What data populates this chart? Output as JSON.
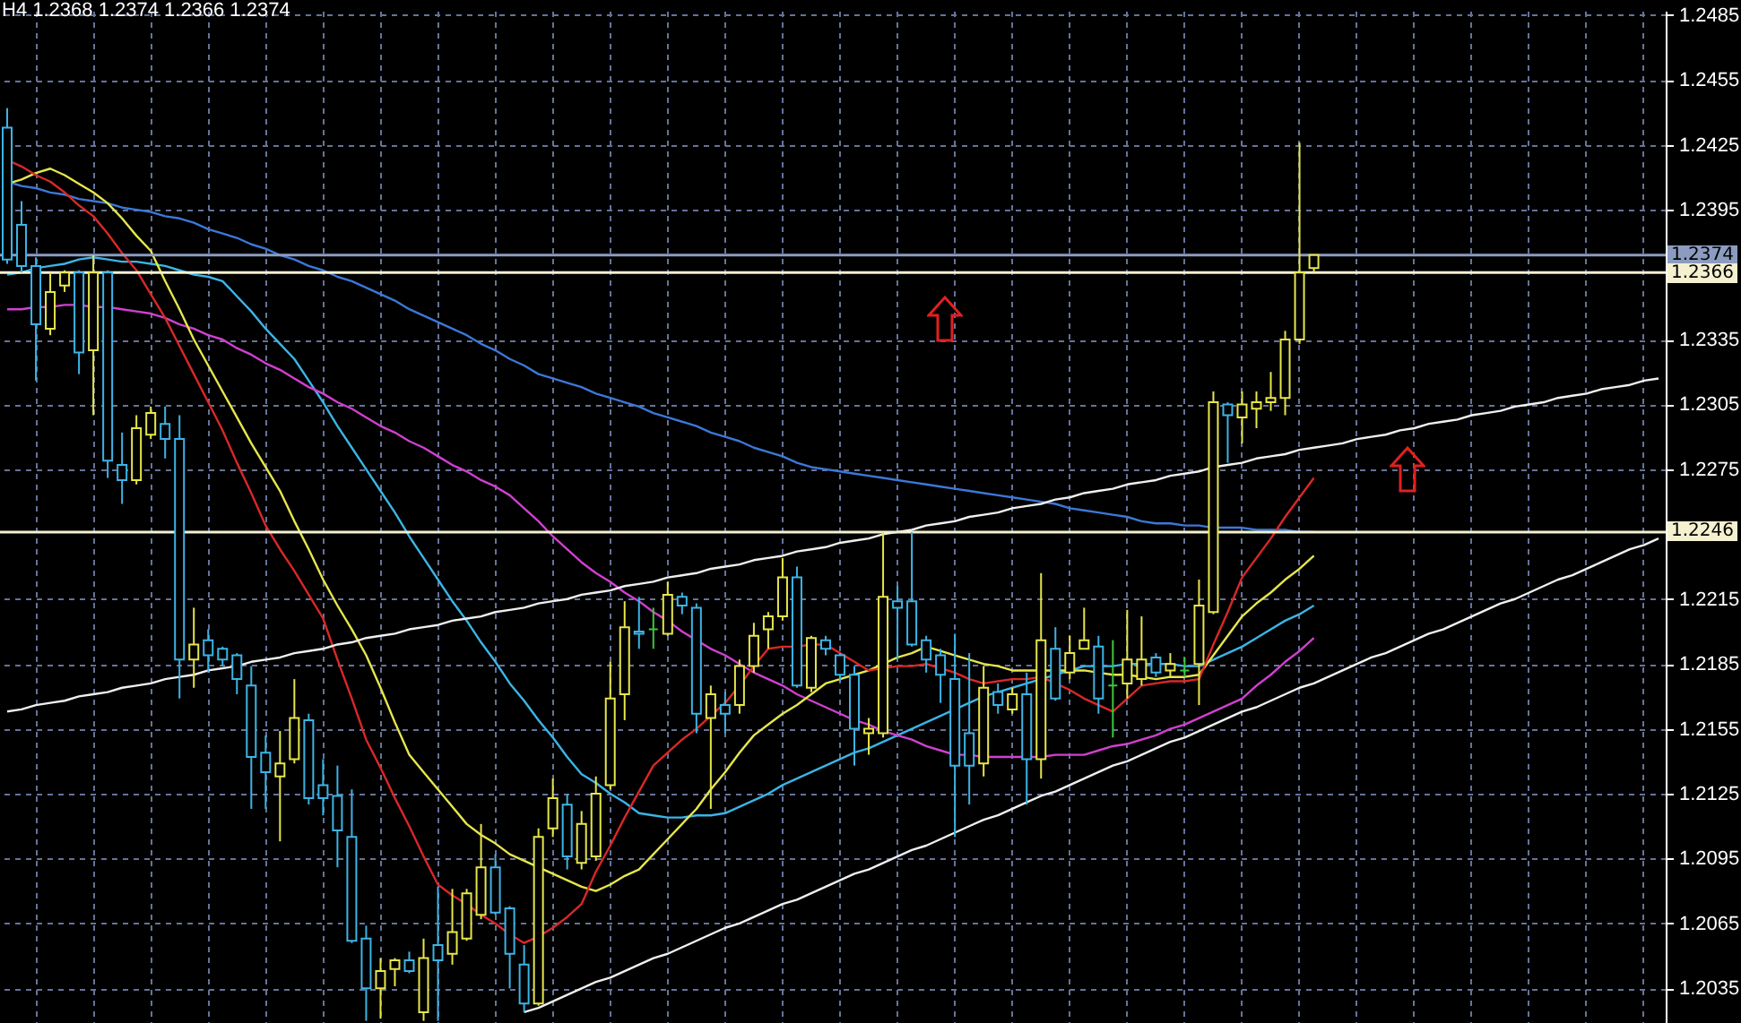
{
  "chart_data": {
    "type": "candlestick",
    "title": "H4 1.2368 1.2374 1.2366 1.2374",
    "categories": [
      null,
      null,
      null,
      null,
      null,
      null,
      null,
      null,
      null,
      null,
      null,
      null,
      null,
      null,
      null,
      null,
      null,
      null,
      null,
      null,
      null,
      null,
      null,
      null,
      null,
      null,
      null,
      null,
      null,
      null,
      null,
      null,
      null,
      null,
      null,
      null,
      null,
      null,
      null,
      null,
      null,
      null,
      null,
      null,
      null,
      null,
      null,
      null,
      null,
      null,
      null,
      null,
      null,
      null,
      null,
      null,
      null,
      null,
      null,
      null,
      null,
      null,
      null,
      null,
      null,
      null,
      null,
      null,
      null,
      null,
      null,
      null,
      null,
      null,
      null,
      null,
      null,
      null,
      null,
      null,
      null,
      null,
      null,
      null,
      null,
      null,
      null,
      null,
      null,
      null,
      null,
      null,
      null,
      null,
      null,
      null,
      null,
      null,
      null,
      null,
      null,
      null,
      null,
      null,
      null,
      null,
      null,
      null,
      null,
      null,
      null,
      null,
      null,
      null,
      null,
      null
    ],
    "ohlc": [
      [
        1.2433,
        1.2442,
        1.237,
        1.2372
      ],
      [
        1.2388,
        1.2399,
        1.2366,
        1.2369
      ],
      [
        1.2369,
        1.2373,
        1.2316,
        1.2342
      ],
      [
        1.234,
        1.2366,
        1.2337,
        1.2357
      ],
      [
        1.236,
        1.2367,
        1.2357,
        1.2366
      ],
      [
        1.2366,
        1.2367,
        1.2319,
        1.2329
      ],
      [
        1.233,
        1.2374,
        1.23,
        1.2366
      ],
      [
        1.2366,
        1.2367,
        1.2271,
        1.2279
      ],
      [
        1.2277,
        1.2292,
        1.2259,
        1.227
      ],
      [
        1.227,
        1.23,
        1.2268,
        1.2294
      ],
      [
        1.2291,
        1.2304,
        1.2289,
        1.2301
      ],
      [
        1.2296,
        1.2304,
        1.228,
        1.2289
      ],
      [
        1.2289,
        1.23,
        1.2169,
        1.2187
      ],
      [
        1.2187,
        1.2211,
        1.2174,
        1.2194
      ],
      [
        1.2196,
        1.2201,
        1.2181,
        1.2189
      ],
      [
        1.2192,
        1.2193,
        1.2184,
        1.2187
      ],
      [
        1.2189,
        1.219,
        1.2171,
        1.2178
      ],
      [
        1.2175,
        1.2184,
        1.2118,
        1.2142
      ],
      [
        1.2144,
        1.2152,
        1.2118,
        1.2135
      ],
      [
        1.2133,
        1.2154,
        1.2103,
        1.2139
      ],
      [
        1.2141,
        1.2178,
        1.2139,
        1.216
      ],
      [
        1.2159,
        1.2162,
        1.212,
        1.2123
      ],
      [
        1.2129,
        1.2141,
        1.2115,
        1.2123
      ],
      [
        1.2124,
        1.2138,
        1.2091,
        1.2108
      ],
      [
        1.2105,
        1.2127,
        1.2056,
        1.2057
      ],
      [
        1.2058,
        1.2064,
        1.202,
        1.2035
      ],
      [
        1.2035,
        1.2049,
        1.2021,
        1.2043
      ],
      [
        1.2044,
        1.2049,
        1.2036,
        1.2048
      ],
      [
        1.2048,
        1.2052,
        1.2042,
        1.2043
      ],
      [
        1.2024,
        1.2058,
        1.202,
        1.2049
      ],
      [
        1.2055,
        1.2082,
        1.202,
        1.2048
      ],
      [
        1.2051,
        1.2081,
        1.2046,
        1.2061
      ],
      [
        1.2058,
        1.2081,
        1.2057,
        1.2079
      ],
      [
        1.2069,
        1.2111,
        1.2067,
        1.2091
      ],
      [
        1.2091,
        1.2097,
        1.2069,
        1.207
      ],
      [
        1.2072,
        1.2073,
        1.2035,
        1.2051
      ],
      [
        1.2046,
        1.2055,
        1.2024,
        1.2028
      ],
      [
        1.2028,
        1.2109,
        1.2027,
        1.2105
      ],
      [
        1.2109,
        1.2132,
        1.2105,
        1.2123
      ],
      [
        1.212,
        1.2125,
        1.209,
        1.2096
      ],
      [
        1.2093,
        1.2117,
        1.209,
        1.2111
      ],
      [
        1.2096,
        1.2133,
        1.2094,
        1.2125
      ],
      [
        1.2129,
        1.2186,
        1.2127,
        1.2169
      ],
      [
        1.2171,
        1.2214,
        1.2159,
        1.2202
      ],
      [
        1.22,
        1.2216,
        1.2192,
        1.2199
      ],
      [
        1.2201,
        1.2211,
        1.2192,
        1.2201
      ],
      [
        1.2199,
        1.2223,
        1.2198,
        1.2217
      ],
      [
        1.2216,
        1.2218,
        1.2208,
        1.2212
      ],
      [
        1.2211,
        1.2213,
        1.2153,
        1.2162
      ],
      [
        1.216,
        1.2175,
        1.2118,
        1.2171
      ],
      [
        1.2166,
        1.2172,
        1.2153,
        1.2162
      ],
      [
        1.2166,
        1.2187,
        1.2162,
        1.2184
      ],
      [
        1.2184,
        1.2204,
        1.2181,
        1.2198
      ],
      [
        1.2201,
        1.2209,
        1.2192,
        1.2207
      ],
      [
        1.2207,
        1.2234,
        1.2205,
        1.2225
      ],
      [
        1.2225,
        1.223,
        1.2174,
        1.2175
      ],
      [
        1.2174,
        1.2198,
        1.2172,
        1.2197
      ],
      [
        1.2196,
        1.2198,
        1.2189,
        1.2192
      ],
      [
        1.2189,
        1.219,
        1.2177,
        1.218
      ],
      [
        1.218,
        1.2184,
        1.2138,
        1.2155
      ],
      [
        1.2153,
        1.216,
        1.2143,
        1.2155
      ],
      [
        1.2153,
        1.2246,
        1.2151,
        1.2216
      ],
      [
        1.2214,
        1.2221,
        1.2187,
        1.2211
      ],
      [
        1.2214,
        1.2246,
        1.2193,
        1.2194
      ],
      [
        1.2196,
        1.2198,
        1.2181,
        1.2187
      ],
      [
        1.2189,
        1.2192,
        1.2167,
        1.218
      ],
      [
        1.2178,
        1.2199,
        1.2105,
        1.2138
      ],
      [
        1.2153,
        1.219,
        1.212,
        1.2138
      ],
      [
        1.2139,
        1.2184,
        1.2133,
        1.2174
      ],
      [
        1.2172,
        1.2176,
        1.2162,
        1.2166
      ],
      [
        1.2164,
        1.2174,
        1.2162,
        1.2171
      ],
      [
        1.2171,
        1.2181,
        1.212,
        1.2141
      ],
      [
        1.2141,
        1.2227,
        1.2132,
        1.2196
      ],
      [
        1.2192,
        1.2202,
        1.2168,
        1.2169
      ],
      [
        1.2181,
        1.2198,
        1.2178,
        1.219
      ],
      [
        1.2192,
        1.2211,
        1.2192,
        1.2196
      ],
      [
        1.2193,
        1.2198,
        1.2162,
        1.2169
      ],
      [
        1.2175,
        1.2196,
        1.2151,
        1.2175
      ],
      [
        1.2176,
        1.221,
        1.2169,
        1.2187
      ],
      [
        1.2178,
        1.2207,
        1.2175,
        1.2187
      ],
      [
        1.2188,
        1.219,
        1.2179,
        1.2181
      ],
      [
        1.2182,
        1.219,
        1.2179,
        1.2185
      ],
      [
        1.2182,
        1.2188,
        1.2179,
        1.2182
      ],
      [
        1.2185,
        1.2224,
        1.2166,
        1.2212
      ],
      [
        1.2209,
        1.2311,
        1.2208,
        1.2306
      ],
      [
        1.2305,
        1.2306,
        1.2278,
        1.23
      ],
      [
        1.2299,
        1.2311,
        1.2287,
        1.2305
      ],
      [
        1.2303,
        1.2311,
        1.2294,
        1.2306
      ],
      [
        1.2306,
        1.232,
        1.2302,
        1.2308
      ],
      [
        1.2308,
        1.2339,
        1.23,
        1.2335
      ],
      [
        1.2335,
        1.2426,
        1.2333,
        1.2366
      ],
      [
        1.2368,
        1.2374,
        1.2366,
        1.2374
      ],
      null,
      null,
      null,
      null,
      null,
      null,
      null,
      null,
      null,
      null,
      null,
      null,
      null,
      null,
      null,
      null,
      null,
      null,
      null,
      null,
      null,
      null,
      null,
      null
    ],
    "colors": [
      "#3cb4e6",
      "#3cb4e6",
      "#3cb4e6",
      "#e6e64c",
      "#e6e64c",
      "#3cb4e6",
      "#e6e64c",
      "#3cb4e6",
      "#3cb4e6",
      "#e6e64c",
      "#e6e64c",
      "#3cb4e6",
      "#3cb4e6",
      "#e6e64c",
      "#3cb4e6",
      "#3cb4e6",
      "#3cb4e6",
      "#3cb4e6",
      "#3cb4e6",
      "#e6e64c",
      "#e6e64c",
      "#3cb4e6",
      "#3cb4e6",
      "#3cb4e6",
      "#3cb4e6",
      "#3cb4e6",
      "#e6e64c",
      "#e6e64c",
      "#3cb4e6",
      "#e6e64c",
      "#3cb4e6",
      "#e6e64c",
      "#e6e64c",
      "#e6e64c",
      "#3cb4e6",
      "#3cb4e6",
      "#3cb4e6",
      "#e6e64c",
      "#e6e64c",
      "#3cb4e6",
      "#e6e64c",
      "#e6e64c",
      "#e6e64c",
      "#e6e64c",
      "#3cb4e6",
      "#3cc83c",
      "#e6e64c",
      "#3cb4e6",
      "#3cb4e6",
      "#e6e64c",
      "#3cb4e6",
      "#e6e64c",
      "#e6e64c",
      "#e6e64c",
      "#e6e64c",
      "#3cb4e6",
      "#e6e64c",
      "#3cb4e6",
      "#3cb4e6",
      "#3cb4e6",
      "#e6e64c",
      "#e6e64c",
      "#3cb4e6",
      "#3cb4e6",
      "#3cb4e6",
      "#3cb4e6",
      "#3cb4e6",
      "#3cb4e6",
      "#e6e64c",
      "#3cb4e6",
      "#e6e64c",
      "#3cb4e6",
      "#e6e64c",
      "#3cb4e6",
      "#e6e64c",
      "#e6e64c",
      "#3cb4e6",
      "#3cc83c",
      "#e6e64c",
      "#e6e64c",
      "#3cb4e6",
      "#e6e64c",
      "#3cc83c",
      "#e6e64c",
      "#e6e64c",
      "#3cb4e6",
      "#e6e64c",
      "#e6e64c",
      "#e6e64c",
      "#e6e64c",
      "#e6e64c",
      "#e6e64c",
      null,
      null,
      null,
      null,
      null,
      null,
      null,
      null,
      null,
      null,
      null,
      null,
      null,
      null,
      null,
      null,
      null,
      null,
      null,
      null,
      null,
      null,
      null,
      null
    ],
    "series": [
      {
        "type": "line",
        "color": "#3c78d8",
        "values": [
          1.2408,
          1.2406,
          1.2405,
          1.2403,
          1.2402,
          1.24,
          1.2399,
          1.2398,
          1.2396,
          1.2395,
          1.2394,
          1.2392,
          1.2391,
          1.2389,
          1.2386,
          1.2384,
          1.2382,
          1.2379,
          1.2377,
          1.2374,
          1.2372,
          1.2369,
          1.2367,
          1.2364,
          1.2362,
          1.2359,
          1.2356,
          1.2353,
          1.2349,
          1.2346,
          1.2343,
          1.234,
          1.2337,
          1.2333,
          1.233,
          1.2326,
          1.2323,
          1.2319,
          1.2317,
          1.2315,
          1.2313,
          1.231,
          1.2308,
          1.2306,
          1.2304,
          1.2301,
          1.2299,
          1.2297,
          1.2295,
          1.2292,
          1.229,
          1.2288,
          1.2285,
          1.2283,
          1.2281,
          1.2278,
          1.2276,
          1.2275,
          1.2274,
          1.2273,
          1.2272,
          1.2271,
          1.227,
          1.2269,
          1.2268,
          1.2267,
          1.2266,
          1.2265,
          1.2264,
          1.2263,
          1.2262,
          1.2261,
          1.226,
          1.2259,
          1.2257,
          1.2256,
          1.2255,
          1.2254,
          1.2253,
          1.2251,
          1.225,
          1.225,
          1.2249,
          1.2249,
          1.2248,
          1.2248,
          1.2248,
          1.2247,
          1.2247,
          1.2247,
          1.2246,
          1.2246,
          null,
          null,
          null,
          null,
          null,
          null,
          null,
          null,
          null,
          null,
          null,
          null,
          null,
          null,
          null,
          null,
          null,
          null,
          null,
          null,
          null,
          null,
          null,
          null
        ]
      },
      {
        "type": "line",
        "color": "#3cb4e6",
        "values": [
          1.2365,
          1.2366,
          1.2368,
          1.2369,
          1.237,
          1.2372,
          1.2373,
          1.2372,
          1.2371,
          1.2371,
          1.237,
          1.2369,
          1.2367,
          1.2365,
          1.2364,
          1.2362,
          1.2355,
          1.2348,
          1.234,
          1.2333,
          1.2326,
          1.2316,
          1.2306,
          1.2295,
          1.2285,
          1.2275,
          1.2265,
          1.2255,
          1.2244,
          1.2234,
          1.2224,
          1.2214,
          1.2205,
          1.2195,
          1.2186,
          1.2176,
          1.2168,
          1.2159,
          1.2151,
          1.2142,
          1.2134,
          1.213,
          1.2125,
          1.2121,
          1.2116,
          1.2115,
          1.2114,
          1.2114,
          1.2115,
          1.2115,
          1.2116,
          1.2119,
          1.2122,
          1.2125,
          1.2129,
          1.2132,
          1.2135,
          1.2138,
          1.2141,
          1.2144,
          1.2146,
          1.2149,
          1.2152,
          1.2155,
          1.2158,
          1.2161,
          1.2164,
          1.2167,
          1.217,
          1.2172,
          1.2174,
          1.2176,
          1.2178,
          1.218,
          1.2182,
          1.2184,
          1.2184,
          1.2184,
          1.2185,
          1.2185,
          1.2185,
          1.2185,
          1.2184,
          1.2184,
          1.2187,
          1.219,
          1.2193,
          1.2197,
          1.2201,
          1.2205,
          1.2208,
          1.2212,
          null,
          null,
          null,
          null,
          null,
          null,
          null,
          null,
          null,
          null,
          null,
          null,
          null,
          null,
          null,
          null,
          null,
          null,
          null,
          null,
          null,
          null,
          null,
          null
        ]
      },
      {
        "type": "line",
        "color": "#d040d0",
        "values": [
          1.2349,
          1.2349,
          1.235,
          1.235,
          1.2351,
          1.2351,
          1.235,
          1.235,
          1.2349,
          1.2348,
          1.2347,
          1.2345,
          1.2342,
          1.234,
          1.2337,
          1.2335,
          1.2331,
          1.2328,
          1.2324,
          1.2321,
          1.2317,
          1.2313,
          1.231,
          1.2306,
          1.2303,
          1.2299,
          1.2295,
          1.2292,
          1.2288,
          1.2285,
          1.2281,
          1.2277,
          1.2274,
          1.227,
          1.2267,
          1.2263,
          1.2257,
          1.2251,
          1.2244,
          1.2238,
          1.2232,
          1.2227,
          1.2223,
          1.2218,
          1.2214,
          1.2209,
          1.2205,
          1.22,
          1.2196,
          1.2192,
          1.2189,
          1.2185,
          1.2181,
          1.2178,
          1.2175,
          1.2171,
          1.2168,
          1.2165,
          1.2162,
          1.2159,
          1.2157,
          1.2154,
          1.2152,
          1.215,
          1.2147,
          1.2145,
          1.2143,
          1.2143,
          1.2142,
          1.2142,
          1.2142,
          1.2142,
          1.2142,
          1.2143,
          1.2143,
          1.2143,
          1.2145,
          1.2147,
          1.2148,
          1.215,
          1.2152,
          1.2155,
          1.2157,
          1.216,
          1.2163,
          1.2166,
          1.2169,
          1.2175,
          1.218,
          1.2186,
          1.2191,
          1.2197,
          null,
          null,
          null,
          null,
          null,
          null,
          null,
          null,
          null,
          null,
          null,
          null,
          null,
          null,
          null,
          null,
          null,
          null,
          null,
          null,
          null,
          null,
          null,
          null
        ]
      },
      {
        "type": "line",
        "color": "#e6e64c",
        "values": [
          1.2407,
          1.2409,
          1.2412,
          1.2414,
          1.2411,
          1.2407,
          1.2403,
          1.2398,
          1.2391,
          1.2383,
          1.2376,
          1.2362,
          1.2349,
          1.2335,
          1.2323,
          1.2311,
          1.2299,
          1.2287,
          1.2276,
          1.2265,
          1.2251,
          1.2238,
          1.2224,
          1.2212,
          1.2201,
          1.2189,
          1.2174,
          1.2158,
          1.2143,
          1.2135,
          1.2127,
          1.2119,
          1.2111,
          1.2106,
          1.2102,
          1.2097,
          1.2094,
          1.2091,
          1.2088,
          1.2085,
          1.2082,
          1.208,
          1.2083,
          1.2087,
          1.209,
          1.2097,
          1.2104,
          1.2111,
          1.2118,
          1.2127,
          1.2135,
          1.2144,
          1.2152,
          1.2157,
          1.2162,
          1.2166,
          1.2171,
          1.2176,
          1.2178,
          1.218,
          1.2182,
          1.2185,
          1.2188,
          1.219,
          1.2193,
          1.2191,
          1.2189,
          1.2187,
          1.2185,
          1.2184,
          1.2182,
          1.2182,
          1.2182,
          1.2182,
          1.2182,
          1.2182,
          1.2181,
          1.218,
          1.218,
          1.2179,
          1.2178,
          1.2179,
          1.2179,
          1.218,
          1.2189,
          1.2198,
          1.2207,
          1.2213,
          1.2218,
          1.2224,
          1.2229,
          1.2235,
          null,
          null,
          null,
          null,
          null,
          null,
          null,
          null,
          null,
          null,
          null,
          null,
          null,
          null,
          null,
          null,
          null,
          null,
          null,
          null,
          null,
          null,
          null,
          null
        ]
      },
      {
        "type": "line",
        "color": "#d82828",
        "values": [
          1.2418,
          1.2415,
          1.2411,
          1.2408,
          1.2403,
          1.2397,
          1.2392,
          1.2384,
          1.2375,
          1.2367,
          1.2356,
          1.2345,
          1.2332,
          1.2319,
          1.2306,
          1.2293,
          1.2278,
          1.2264,
          1.2249,
          1.2238,
          1.2228,
          1.2217,
          1.2206,
          1.2187,
          1.2169,
          1.215,
          1.2137,
          1.2123,
          1.211,
          1.2096,
          1.2083,
          1.2078,
          1.2074,
          1.2069,
          1.2065,
          1.206,
          1.2056,
          1.2059,
          1.2063,
          1.2068,
          1.2074,
          1.2089,
          1.2101,
          1.2114,
          1.2126,
          1.2138,
          1.2144,
          1.215,
          1.2155,
          1.2161,
          1.2167,
          1.2175,
          1.2184,
          1.2192,
          1.2193,
          1.2193,
          1.2194,
          1.2194,
          1.219,
          1.2186,
          1.2182,
          1.2183,
          1.2184,
          1.2184,
          1.2185,
          1.2183,
          1.2181,
          1.2178,
          1.2176,
          1.2177,
          1.2178,
          1.2178,
          1.2179,
          1.2176,
          1.2173,
          1.2169,
          1.2166,
          1.2163,
          1.2169,
          1.2175,
          1.2176,
          1.2177,
          1.2177,
          1.2178,
          1.2194,
          1.2209,
          1.2225,
          1.2234,
          1.2243,
          1.2253,
          1.2262,
          1.2271,
          null,
          null,
          null,
          null,
          null,
          null,
          null,
          null,
          null,
          null,
          null,
          null,
          null,
          null,
          null,
          null,
          null,
          null,
          null,
          null,
          null,
          null,
          null,
          null
        ]
      },
      {
        "type": "line",
        "color": "#f0f0f0",
        "values": [
          1.2163,
          1.2164,
          1.2166,
          1.2167,
          1.2168,
          1.217,
          1.2171,
          1.2172,
          1.2174,
          1.2175,
          1.2176,
          1.2178,
          1.2179,
          1.218,
          1.2182,
          1.2183,
          1.2184,
          1.2186,
          1.2187,
          1.2188,
          1.219,
          1.2191,
          1.2192,
          1.2194,
          1.2195,
          1.2197,
          1.2198,
          1.2199,
          1.2201,
          1.2202,
          1.2203,
          1.2205,
          1.2206,
          1.2207,
          1.2209,
          1.221,
          1.2211,
          1.2213,
          1.2214,
          1.2215,
          1.2217,
          1.2218,
          1.2219,
          1.2221,
          1.2222,
          1.2223,
          1.2225,
          1.2226,
          1.2227,
          1.2229,
          1.223,
          1.2231,
          1.2233,
          1.2234,
          1.2235,
          1.2237,
          1.2238,
          1.2239,
          1.2241,
          1.2242,
          1.2243,
          1.2245,
          1.2246,
          1.2247,
          1.2249,
          1.225,
          1.2251,
          1.2253,
          1.2254,
          1.2255,
          1.2257,
          1.2258,
          1.2259,
          1.2261,
          1.2262,
          1.2264,
          1.2265,
          1.2266,
          1.2268,
          1.2269,
          1.227,
          1.2272,
          1.2273,
          1.2274,
          1.2276,
          1.2277,
          1.2278,
          1.228,
          1.2281,
          1.2282,
          1.2284,
          1.2285,
          1.2286,
          1.2287,
          1.2289,
          1.229,
          1.2291,
          1.2293,
          1.2294,
          1.2296,
          1.2297,
          1.2298,
          1.23,
          1.2301,
          1.2302,
          1.2304,
          1.2305,
          1.2306,
          1.2308,
          1.2309,
          1.231,
          1.2312,
          1.2313,
          1.2314,
          1.2316,
          1.2317
        ]
      },
      {
        "type": "line",
        "color": "#f0f0f0",
        "values": [
          null,
          null,
          null,
          null,
          null,
          null,
          null,
          null,
          null,
          null,
          null,
          null,
          null,
          null,
          null,
          null,
          null,
          null,
          null,
          null,
          null,
          null,
          null,
          null,
          null,
          null,
          null,
          null,
          null,
          null,
          null,
          null,
          null,
          null,
          null,
          null,
          1.2024,
          1.2026,
          1.2029,
          1.2032,
          1.2035,
          1.2038,
          1.204,
          1.2043,
          1.2046,
          1.2049,
          1.2051,
          1.2054,
          1.2057,
          1.206,
          1.2063,
          1.2065,
          1.2068,
          1.2071,
          1.2074,
          1.2076,
          1.2079,
          1.2082,
          1.2085,
          1.2088,
          1.209,
          1.2093,
          1.2096,
          1.2099,
          1.2101,
          1.2104,
          1.2107,
          1.211,
          1.2113,
          1.2115,
          1.2118,
          1.2121,
          1.2124,
          1.2126,
          1.2129,
          1.2132,
          1.2135,
          1.2138,
          1.214,
          1.2143,
          1.2146,
          1.2149,
          1.2151,
          1.2154,
          1.2157,
          1.216,
          1.2163,
          1.2165,
          1.2168,
          1.2171,
          1.2174,
          1.2176,
          1.2179,
          1.2182,
          1.2185,
          1.2188,
          1.219,
          1.2193,
          1.2196,
          1.2199,
          1.2201,
          1.2204,
          1.2207,
          1.221,
          1.2213,
          1.2215,
          1.2218,
          1.2221,
          1.2224,
          1.2226,
          1.2229,
          1.2232,
          1.2235,
          1.2238,
          1.224,
          1.2243
        ]
      }
    ],
    "ylim": [
      1.2019,
      1.2487
    ],
    "yticks": [
      1.2035,
      1.2065,
      1.2095,
      1.2125,
      1.2155,
      1.2185,
      1.2215,
      1.2275,
      1.2305,
      1.2335,
      1.2395,
      1.2425,
      1.2455,
      1.2485
    ],
    "ref_lines": [
      {
        "axis": "y",
        "value": 1.2374,
        "label": "1.2374",
        "color": "#8c9cc0"
      },
      {
        "axis": "y",
        "value": 1.2366,
        "label": "1.2366",
        "color": "#f4f0d0"
      },
      {
        "axis": "y",
        "value": 1.2246,
        "label": "1.2246",
        "color": "#f4f0d0"
      }
    ],
    "grid": true,
    "tick_labels": "y"
  }
}
